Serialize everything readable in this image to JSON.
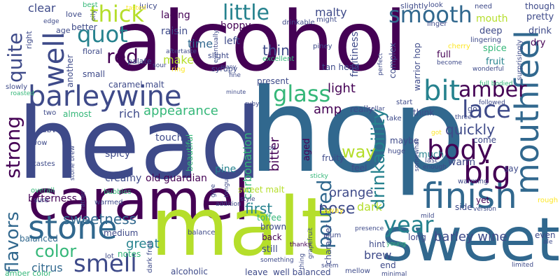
{
  "colors": {
    "background": "#ffffff",
    "dark_purple": "#440154",
    "indigo": "#3e4a89",
    "blue": "#31688e",
    "teal": "#26828e",
    "green": "#1f9e89",
    "light_green": "#35b779",
    "yellow_green": "#b5de2b",
    "yellow": "#fde725"
  },
  "words": [
    {
      "text": "alcohol",
      "color": "#440154"
    },
    {
      "text": "head",
      "color": "#3e4a89"
    },
    {
      "text": "hop",
      "color": "#31688e"
    },
    {
      "text": "caramel",
      "color": "#440154"
    },
    {
      "text": "malt",
      "color": "#b5de2b"
    },
    {
      "text": "sweet",
      "color": "#31688e"
    },
    {
      "text": "barleywine",
      "color": "#3e4a89"
    },
    {
      "text": "mouthfeel",
      "color": "#31688e"
    },
    {
      "text": "finish",
      "color": "#31688e"
    },
    {
      "text": "smooth",
      "color": "#31688e"
    },
    {
      "text": "big",
      "color": "#440154"
    },
    {
      "text": "bit",
      "color": "#26828e"
    },
    {
      "text": "amber",
      "color": "#440154"
    },
    {
      "text": "lace",
      "color": "#3e4a89"
    },
    {
      "text": "body",
      "color": "#440154"
    },
    {
      "text": "stone",
      "color": "#31688e"
    },
    {
      "text": "smell",
      "color": "#3e4a89"
    },
    {
      "text": "little",
      "color": "#26828e"
    },
    {
      "text": "thick",
      "color": "#b5de2b"
    },
    {
      "text": "quot",
      "color": "#26828e"
    },
    {
      "text": "red",
      "color": "#440154"
    },
    {
      "text": "glass",
      "color": "#35b779"
    },
    {
      "text": "well",
      "color": "#3e4a89"
    },
    {
      "text": "strong",
      "color": "#440154"
    },
    {
      "text": "flavors",
      "color": "#31688e"
    },
    {
      "text": "quite",
      "color": "#3e4a89"
    },
    {
      "text": "year",
      "color": "#26828e"
    },
    {
      "text": "poured",
      "color": "#31688e"
    },
    {
      "text": "drinkability",
      "color": "#26828e"
    },
    {
      "text": "color",
      "color": "#35b779"
    },
    {
      "text": "nose",
      "color": "#3e4a89"
    },
    {
      "text": "quickly",
      "color": "#3e4a89"
    },
    {
      "text": "barley wine",
      "color": "#3e4a89"
    },
    {
      "text": "sweetness",
      "color": "#31688e"
    },
    {
      "text": "great",
      "color": "#26828e"
    },
    {
      "text": "orange",
      "color": "#3e4a89"
    },
    {
      "text": "way",
      "color": "#b5de2b"
    },
    {
      "text": "light",
      "color": "#440154"
    },
    {
      "text": "amp",
      "color": "#440154"
    },
    {
      "text": "bitter",
      "color": "#440154"
    },
    {
      "text": "first",
      "color": "#26828e"
    },
    {
      "text": "carbonation",
      "color": "#35b779"
    },
    {
      "text": "appearance",
      "color": "#35b779"
    },
    {
      "text": "rich",
      "color": "#3e4a89"
    },
    {
      "text": "thin",
      "color": "#3e4a89"
    },
    {
      "text": "malty",
      "color": "#3e4a89"
    },
    {
      "text": "clear",
      "color": "#3e4a89"
    },
    {
      "text": "citrus",
      "color": "#31688e"
    },
    {
      "text": "brew",
      "color": "#3e4a89"
    },
    {
      "text": "dark",
      "color": "#b5de2b"
    },
    {
      "text": "creamy",
      "color": "#3e4a89"
    },
    {
      "text": "bitterness",
      "color": "#440154"
    },
    {
      "text": "caramel malt",
      "color": "#3e4a89"
    },
    {
      "text": "old guardian",
      "color": "#440154"
    },
    {
      "text": "sweet malt",
      "color": "#b5de2b"
    },
    {
      "text": "make",
      "color": "#b5de2b"
    },
    {
      "text": "time",
      "color": "#31688e"
    },
    {
      "text": "raisin",
      "color": "#3e4a89"
    },
    {
      "text": "lacing",
      "color": "#440154"
    },
    {
      "text": "hoppy",
      "color": "#440154"
    },
    {
      "text": "left",
      "color": "#3e4a89"
    },
    {
      "text": "present",
      "color": "#3e4a89"
    },
    {
      "text": "fruitiness",
      "color": "#3e4a89"
    },
    {
      "text": "tan head",
      "color": "#3e4a89"
    },
    {
      "text": "pine",
      "color": "#26828e"
    },
    {
      "text": "spicy",
      "color": "#3e4a89"
    },
    {
      "text": "touch",
      "color": "#3e4a89"
    },
    {
      "text": "warm",
      "color": "#3e4a89"
    },
    {
      "text": "much",
      "color": "#26828e"
    },
    {
      "text": "aged",
      "color": "#440154"
    },
    {
      "text": "fruity",
      "color": "#3e4a89"
    },
    {
      "text": "mouth",
      "color": "#b5de2b"
    },
    {
      "text": "deep",
      "color": "#3e4a89"
    },
    {
      "text": "full",
      "color": "#440154"
    },
    {
      "text": "fruit",
      "color": "#26828e"
    },
    {
      "text": "spice",
      "color": "#35b779"
    },
    {
      "text": "drink",
      "color": "#3e4a89"
    },
    {
      "text": "dry",
      "color": "#440154"
    },
    {
      "text": "pretty",
      "color": "#3e4a89"
    },
    {
      "text": "though",
      "color": "#3e4a89"
    },
    {
      "text": "really",
      "color": "#3e4a89"
    },
    {
      "text": "think",
      "color": "#3e4a89"
    },
    {
      "text": "come",
      "color": "#3e4a89"
    },
    {
      "text": "say",
      "color": "#3e4a89"
    },
    {
      "text": "maybe",
      "color": "#3e4a89"
    },
    {
      "text": "feel",
      "color": "#3e4a89"
    },
    {
      "text": "yet",
      "color": "#440154"
    },
    {
      "text": "long",
      "color": "#3e4a89"
    },
    {
      "text": "balanced",
      "color": "#31688e"
    },
    {
      "text": "medium",
      "color": "#3e4a89"
    },
    {
      "text": "notes",
      "color": "#35b779"
    },
    {
      "text": "alcoholic",
      "color": "#3e4a89"
    },
    {
      "text": "leave",
      "color": "#3e4a89"
    },
    {
      "text": "well balanced",
      "color": "#3e4a89"
    },
    {
      "text": "still",
      "color": "#3e4a89"
    },
    {
      "text": "back",
      "color": "#440154"
    },
    {
      "text": "brown",
      "color": "#3e4a89"
    },
    {
      "text": "toffee",
      "color": "#35b779"
    },
    {
      "text": "hint",
      "color": "#3e4a89"
    },
    {
      "text": "end",
      "color": "#3e4a89"
    },
    {
      "text": "character",
      "color": "#3e4a89"
    },
    {
      "text": "side",
      "color": "#3e4a89"
    },
    {
      "text": "even",
      "color": "#3e4a89"
    },
    {
      "text": "amber color",
      "color": "#35b779"
    },
    {
      "text": "another",
      "color": "#3e4a89"
    },
    {
      "text": "small",
      "color": "#3e4a89"
    },
    {
      "text": "almost",
      "color": "#35b779"
    },
    {
      "text": "beautiful",
      "color": "#35b779"
    },
    {
      "text": "better",
      "color": "#3e4a89"
    },
    {
      "text": "age",
      "color": "#3e4a89"
    },
    {
      "text": "right",
      "color": "#3e4a89"
    },
    {
      "text": "love",
      "color": "#3e4a89"
    },
    {
      "text": "best",
      "color": "#35b779"
    },
    {
      "text": "floral",
      "color": "#3e4a89"
    },
    {
      "text": "palate",
      "color": "#3e4a89"
    },
    {
      "text": "ring",
      "color": "#fde725"
    },
    {
      "text": "syrupy",
      "color": "#3e4a89"
    },
    {
      "text": "slight",
      "color": "#3e4a89"
    },
    {
      "text": "juicy",
      "color": "#3e4a89"
    },
    {
      "text": "abv",
      "color": "#3e4a89"
    },
    {
      "text": "wow",
      "color": "#3e4a89"
    },
    {
      "text": "tastes",
      "color": "#3e4a89"
    },
    {
      "text": "overall",
      "color": "#35b779"
    },
    {
      "text": "sure",
      "color": "#3e4a89"
    },
    {
      "text": "bubbles",
      "color": "#35b779"
    },
    {
      "text": "warmed",
      "color": "#3e4a89"
    },
    {
      "text": "lot",
      "color": "#3e4a89"
    },
    {
      "text": "balance",
      "color": "#3e4a89"
    },
    {
      "text": "two",
      "color": "#3e4a89"
    },
    {
      "text": "slowly",
      "color": "#3e4a89"
    },
    {
      "text": "cellar",
      "color": "#3e4a89"
    },
    {
      "text": "excellent",
      "color": "#35b779"
    },
    {
      "text": "piney",
      "color": "#3e4a89"
    },
    {
      "text": "drinkable",
      "color": "#3e4a89"
    },
    {
      "text": "might",
      "color": "#3e4a89"
    },
    {
      "text": "slightly",
      "color": "#3e4a89"
    },
    {
      "text": "look",
      "color": "#3e4a89"
    },
    {
      "text": "need",
      "color": "#3e4a89"
    },
    {
      "text": "linger",
      "color": "#3e4a89"
    },
    {
      "text": "lingering",
      "color": "#3e4a89"
    },
    {
      "text": "warrior hop",
      "color": "#3e4a89"
    },
    {
      "text": "cherry",
      "color": "#fde725"
    },
    {
      "text": "become",
      "color": "#3e4a89"
    },
    {
      "text": "wonderful",
      "color": "#3e4a89"
    },
    {
      "text": "surprisingly",
      "color": "#3e4a89"
    },
    {
      "text": "full bodied",
      "color": "#35b779"
    },
    {
      "text": "followed",
      "color": "#3e4a89"
    },
    {
      "text": "three",
      "color": "#3e4a89"
    },
    {
      "text": "go",
      "color": "#3e4a89"
    },
    {
      "text": "start",
      "color": "#3e4a89"
    },
    {
      "text": "take",
      "color": "#3e4a89"
    },
    {
      "text": "huge",
      "color": "#3e4a89"
    },
    {
      "text": "last",
      "color": "#3e4a89"
    },
    {
      "text": "enough",
      "color": "#3e4a89"
    },
    {
      "text": "warming",
      "color": "#3e4a89"
    },
    {
      "text": "rough",
      "color": "#fde725"
    },
    {
      "text": "version",
      "color": "#3e4a89"
    },
    {
      "text": "mild",
      "color": "#3e4a89"
    },
    {
      "text": "presence",
      "color": "#3e4a89"
    },
    {
      "text": "young",
      "color": "#35b779"
    },
    {
      "text": "plum",
      "color": "#3e4a89"
    },
    {
      "text": "thanks",
      "color": "#440154"
    },
    {
      "text": "away",
      "color": "#fde725"
    },
    {
      "text": "style",
      "color": "#3e4a89"
    },
    {
      "text": "sticky",
      "color": "#35b779"
    },
    {
      "text": "addition",
      "color": "#3e4a89"
    },
    {
      "text": "something",
      "color": "#3e4a89"
    },
    {
      "text": "seem",
      "color": "#3e4a89"
    },
    {
      "text": "mellow",
      "color": "#3e4a89"
    },
    {
      "text": "limited",
      "color": "#3e4a89"
    },
    {
      "text": "minimal",
      "color": "#3e4a89"
    },
    {
      "text": "dark fruit",
      "color": "#3e4a89"
    },
    {
      "text": "fine",
      "color": "#3e4a89"
    },
    {
      "text": "ruby",
      "color": "#3e4a89"
    },
    {
      "text": "oz",
      "color": "#3e4a89"
    },
    {
      "text": "sour",
      "color": "#3e4a89"
    },
    {
      "text": "aftertaste",
      "color": "#3e4a89"
    },
    {
      "text": "tasted",
      "color": "#fde725"
    },
    {
      "text": "edge",
      "color": "#3e4a89"
    },
    {
      "text": "roasted",
      "color": "#35b779"
    },
    {
      "text": "stone brew",
      "color": "#3e4a89"
    },
    {
      "text": "rather",
      "color": "#3e4a89"
    },
    {
      "text": "ale",
      "color": "#3e4a89"
    },
    {
      "text": "give",
      "color": "#3e4a89"
    },
    {
      "text": "many",
      "color": "#3e4a89"
    },
    {
      "text": "minute",
      "color": "#3e4a89"
    },
    {
      "text": "perfect",
      "color": "#3e4a89"
    },
    {
      "text": "complex",
      "color": "#3e4a89"
    },
    {
      "text": "eventually",
      "color": "#3e4a89"
    },
    {
      "text": "tongue",
      "color": "#3e4a89"
    },
    {
      "text": "got",
      "color": "#fde725"
    },
    {
      "text": "somewhat",
      "color": "#3e4a89"
    },
    {
      "text": "thing",
      "color": "#3e4a89"
    },
    {
      "text": "grapefruit",
      "color": "#3e4a89"
    },
    {
      "text": "oily",
      "color": "#3e4a89"
    }
  ]
}
